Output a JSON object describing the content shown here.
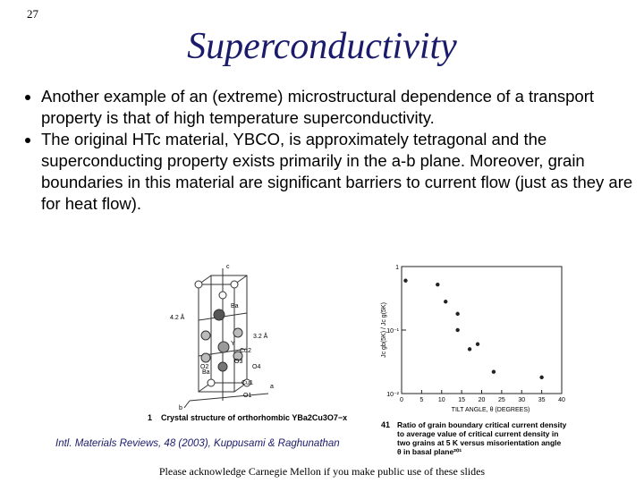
{
  "page_number": "27",
  "title": "Superconductivity",
  "bullets": [
    "Another example of an (extreme) microstructural dependence of a transport property is that of high temperature superconductivity.",
    "The original HTc material, YBCO, is approximately tetragonal and the superconducting property exists primarily in the a-b plane. Moreover, grain boundaries in this material are significant barriers to current flow (just as they are for heat flow)."
  ],
  "structure_figure": {
    "labels": [
      "c",
      "4.2 Å",
      "3.2 Å",
      "Ba",
      "Y",
      "Cu2",
      "O3",
      "O2",
      "O4",
      "Ba",
      "Cu1",
      "O1",
      "a",
      "b"
    ],
    "caption_number": "1",
    "caption": "Crystal structure of orthorhombic YBa2Cu3O7−x"
  },
  "chart_data": {
    "type": "scatter",
    "x": [
      1,
      9,
      11,
      14,
      14,
      17,
      19,
      23,
      35
    ],
    "values": [
      0.6,
      0.52,
      0.28,
      0.18,
      0.1,
      0.05,
      0.06,
      0.022,
      0.018
    ],
    "color": "#222222",
    "xlim": [
      0,
      40
    ],
    "xticks": [
      0,
      5,
      10,
      15,
      20,
      25,
      30,
      35,
      40
    ],
    "ylim": [
      0.01,
      1
    ],
    "log_y": true,
    "yticks": [
      1,
      {
        "value": 0.1,
        "label": "10⁻¹"
      },
      {
        "value": 0.01,
        "label": "10⁻²"
      }
    ],
    "xlabel": "TILT ANGLE, θ (DEGREES)",
    "ylabel": "Jc gb(5K) / Jc g(5K)",
    "caption_number": "41",
    "caption": "Ratio of grain boundary critical current density to average value of critical current density in two grains at 5 K versus misorientation angle θ in basal plane²⁰¹"
  },
  "citation": "Intl. Materials Reviews, 48 (2003), Kuppusami & Raghunathan",
  "footer": "Please acknowledge Carnegie Mellon if you make public use of these slides"
}
